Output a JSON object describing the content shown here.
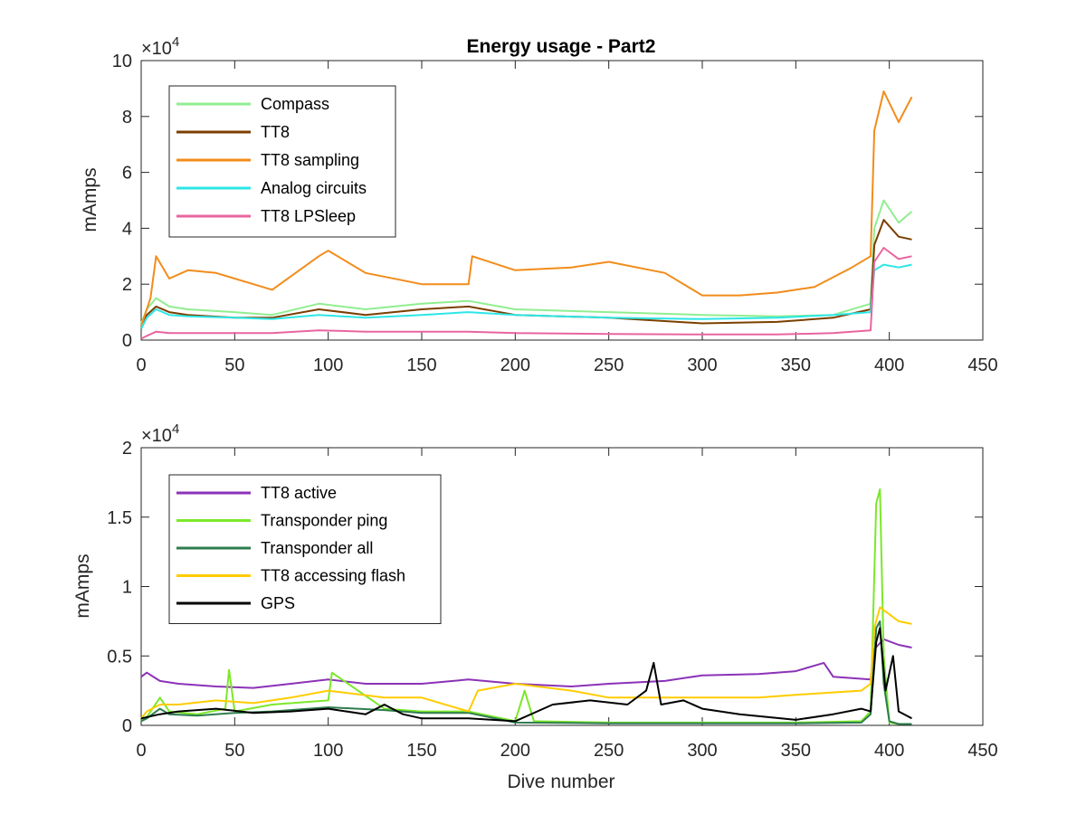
{
  "chart_data": [
    {
      "type": "line",
      "title": "Energy usage - Part2",
      "xlabel": "",
      "ylabel": "mAmps",
      "xlim": [
        0,
        450
      ],
      "ylim": [
        0,
        100000
      ],
      "x_ticks": [
        "0",
        "50",
        "100",
        "150",
        "200",
        "250",
        "300",
        "350",
        "400",
        "450"
      ],
      "y_ticks": [
        "0",
        "2",
        "4",
        "6",
        "8",
        "10"
      ],
      "y_multiplier": "×10",
      "y_multiplier_exp": "4",
      "grid": false,
      "legend_position": "top-left",
      "series": [
        {
          "name": "Compass",
          "color": "#90EE90",
          "x": [
            0,
            3,
            8,
            15,
            25,
            50,
            70,
            95,
            120,
            150,
            175,
            200,
            250,
            300,
            340,
            370,
            390,
            392,
            397,
            405,
            412
          ],
          "y": [
            6000,
            11000,
            15000,
            12000,
            11000,
            10000,
            9000,
            13000,
            11000,
            13000,
            14000,
            11000,
            10000,
            9000,
            8500,
            9000,
            13000,
            40000,
            50000,
            42000,
            46000
          ]
        },
        {
          "name": "TT8",
          "color": "#7B3F00",
          "x": [
            0,
            3,
            8,
            15,
            25,
            50,
            70,
            95,
            120,
            150,
            175,
            200,
            250,
            300,
            340,
            370,
            390,
            392,
            397,
            405,
            412
          ],
          "y": [
            4000,
            9000,
            12000,
            10000,
            9000,
            8000,
            8000,
            11000,
            9000,
            11000,
            12000,
            9000,
            8000,
            6000,
            6500,
            8000,
            11000,
            34000,
            43000,
            37000,
            36000
          ]
        },
        {
          "name": "TT8 sampling",
          "color": "#F28C1A",
          "x": [
            0,
            5,
            8,
            15,
            25,
            40,
            60,
            70,
            95,
            100,
            120,
            150,
            175,
            177,
            200,
            230,
            250,
            280,
            300,
            320,
            340,
            360,
            380,
            390,
            392,
            397,
            405,
            412
          ],
          "y": [
            5000,
            15000,
            30000,
            22000,
            25000,
            24000,
            20000,
            18000,
            30000,
            32000,
            24000,
            20000,
            20000,
            30000,
            25000,
            26000,
            28000,
            24000,
            16000,
            16000,
            17000,
            19000,
            26000,
            30000,
            75000,
            89000,
            78000,
            87000
          ]
        },
        {
          "name": "Analog circuits",
          "color": "#2EE6E6",
          "x": [
            0,
            3,
            8,
            15,
            25,
            50,
            70,
            95,
            120,
            150,
            175,
            200,
            250,
            300,
            340,
            370,
            390,
            392,
            397,
            405,
            412
          ],
          "y": [
            4000,
            8000,
            11000,
            9000,
            8500,
            8000,
            7500,
            9000,
            8000,
            9000,
            10000,
            9000,
            8000,
            7500,
            8000,
            9000,
            10000,
            25000,
            27000,
            26000,
            27000
          ]
        },
        {
          "name": "TT8 LPSleep",
          "color": "#E8659F",
          "x": [
            0,
            3,
            8,
            15,
            25,
            50,
            70,
            95,
            120,
            150,
            175,
            200,
            250,
            300,
            340,
            370,
            390,
            392,
            397,
            405,
            412
          ],
          "y": [
            500,
            1500,
            3000,
            2500,
            2500,
            2500,
            2500,
            3500,
            3000,
            3000,
            3000,
            2500,
            2200,
            2000,
            2000,
            2500,
            3500,
            28000,
            33000,
            29000,
            30000
          ]
        }
      ]
    },
    {
      "type": "line",
      "title": "",
      "xlabel": "Dive number",
      "ylabel": "mAmps",
      "xlim": [
        0,
        450
      ],
      "ylim": [
        0,
        20000
      ],
      "x_ticks": [
        "0",
        "50",
        "100",
        "150",
        "200",
        "250",
        "300",
        "350",
        "400",
        "450"
      ],
      "y_ticks": [
        "0",
        "0.5",
        "1",
        "1.5",
        "2"
      ],
      "y_multiplier": "×10",
      "y_multiplier_exp": "4",
      "grid": false,
      "legend_position": "top-left",
      "series": [
        {
          "name": "TT8 active",
          "color": "#8B32B8",
          "x": [
            0,
            3,
            10,
            20,
            40,
            60,
            80,
            100,
            120,
            150,
            175,
            200,
            230,
            250,
            280,
            300,
            330,
            350,
            365,
            370,
            390,
            392,
            397,
            405,
            412
          ],
          "y": [
            3500,
            3800,
            3200,
            3000,
            2800,
            2700,
            3000,
            3300,
            3000,
            3000,
            3300,
            3000,
            2800,
            3000,
            3200,
            3600,
            3700,
            3900,
            4500,
            3500,
            3300,
            5500,
            6200,
            5800,
            5600
          ]
        },
        {
          "name": "Transponder ping",
          "color": "#7CE82A",
          "x": [
            0,
            3,
            10,
            15,
            30,
            45,
            47,
            50,
            70,
            100,
            102,
            130,
            150,
            175,
            200,
            205,
            210,
            250,
            300,
            350,
            385,
            390,
            393,
            395,
            397,
            400,
            405,
            412
          ],
          "y": [
            300,
            600,
            2000,
            1000,
            800,
            1200,
            4000,
            1000,
            1500,
            1800,
            3800,
            1200,
            1000,
            1000,
            300,
            2500,
            300,
            200,
            200,
            200,
            300,
            1000,
            16000,
            17000,
            5000,
            200,
            100,
            100
          ]
        },
        {
          "name": "Transponder all",
          "color": "#2E7D4F",
          "x": [
            0,
            3,
            10,
            15,
            30,
            50,
            70,
            100,
            130,
            150,
            175,
            200,
            250,
            300,
            350,
            385,
            390,
            393,
            395,
            397,
            400,
            405,
            412
          ],
          "y": [
            300,
            500,
            1200,
            800,
            700,
            900,
            1000,
            1300,
            1100,
            900,
            900,
            200,
            150,
            150,
            150,
            200,
            800,
            7000,
            7500,
            3000,
            300,
            100,
            100
          ]
        },
        {
          "name": "TT8 accessing flash",
          "color": "#FFCC00",
          "x": [
            0,
            3,
            10,
            20,
            40,
            60,
            80,
            100,
            130,
            150,
            175,
            180,
            200,
            230,
            250,
            280,
            300,
            330,
            350,
            385,
            390,
            392,
            395,
            400,
            405,
            412
          ],
          "y": [
            500,
            1000,
            1500,
            1500,
            1800,
            1600,
            2000,
            2500,
            2000,
            2000,
            1000,
            2500,
            3000,
            2500,
            2000,
            2000,
            2000,
            2000,
            2200,
            2500,
            3000,
            7000,
            8500,
            8000,
            7500,
            7300
          ]
        },
        {
          "name": "GPS",
          "color": "#000000",
          "x": [
            0,
            10,
            20,
            40,
            60,
            80,
            100,
            120,
            130,
            140,
            150,
            175,
            200,
            220,
            240,
            260,
            270,
            274,
            278,
            290,
            300,
            320,
            350,
            370,
            385,
            390,
            393,
            395,
            398,
            402,
            405,
            412
          ],
          "y": [
            500,
            800,
            1000,
            1200,
            900,
            1000,
            1200,
            800,
            1500,
            800,
            500,
            500,
            300,
            1500,
            1800,
            1500,
            2500,
            4500,
            1500,
            1800,
            1200,
            800,
            400,
            800,
            1200,
            1000,
            6000,
            7000,
            2500,
            5000,
            1000,
            500
          ]
        }
      ]
    }
  ]
}
